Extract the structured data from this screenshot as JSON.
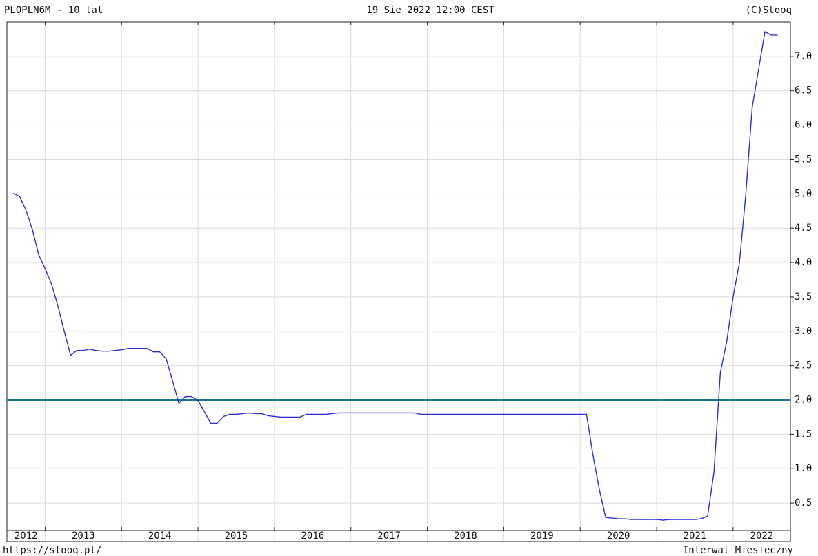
{
  "chart_data": {
    "type": "line",
    "title": "PLOPLN6M - 10 lat",
    "subtitle": "19 Sie 2022 12:00 CEST",
    "source": "(C)Stooq",
    "footer_left": "https://stooq.pl/",
    "footer_right": "Interwal Miesieczny",
    "x": [
      "2012-08",
      "2012-09",
      "2012-10",
      "2012-11",
      "2012-12",
      "2013-01",
      "2013-02",
      "2013-03",
      "2013-04",
      "2013-05",
      "2013-06",
      "2013-07",
      "2013-08",
      "2013-09",
      "2013-10",
      "2013-11",
      "2013-12",
      "2014-01",
      "2014-02",
      "2014-03",
      "2014-04",
      "2014-05",
      "2014-06",
      "2014-07",
      "2014-08",
      "2014-09",
      "2014-10",
      "2014-11",
      "2014-12",
      "2015-01",
      "2015-02",
      "2015-03",
      "2015-04",
      "2015-05",
      "2015-06",
      "2015-07",
      "2015-08",
      "2015-09",
      "2015-10",
      "2015-11",
      "2015-12",
      "2016-01",
      "2016-02",
      "2016-03",
      "2016-04",
      "2016-05",
      "2016-06",
      "2016-07",
      "2016-08",
      "2016-09",
      "2016-10",
      "2016-11",
      "2016-12",
      "2017-01",
      "2017-02",
      "2017-03",
      "2017-04",
      "2017-05",
      "2017-06",
      "2017-07",
      "2017-08",
      "2017-09",
      "2017-10",
      "2017-11",
      "2017-12",
      "2018-01",
      "2018-02",
      "2018-03",
      "2018-04",
      "2018-05",
      "2018-06",
      "2018-07",
      "2018-08",
      "2018-09",
      "2018-10",
      "2018-11",
      "2018-12",
      "2019-01",
      "2019-02",
      "2019-03",
      "2019-04",
      "2019-05",
      "2019-06",
      "2019-07",
      "2019-08",
      "2019-09",
      "2019-10",
      "2019-11",
      "2019-12",
      "2020-01",
      "2020-02",
      "2020-03",
      "2020-04",
      "2020-05",
      "2020-06",
      "2020-07",
      "2020-08",
      "2020-09",
      "2020-10",
      "2020-11",
      "2020-12",
      "2021-01",
      "2021-02",
      "2021-03",
      "2021-04",
      "2021-05",
      "2021-06",
      "2021-07",
      "2021-08",
      "2021-09",
      "2021-10",
      "2021-11",
      "2021-12",
      "2022-01",
      "2022-02",
      "2022-03",
      "2022-04",
      "2022-05",
      "2022-06",
      "2022-07",
      "2022-08"
    ],
    "series": [
      {
        "name": "PLOPLN6M",
        "color": "#2b2bd9",
        "values": [
          5.01,
          4.96,
          4.76,
          4.48,
          4.11,
          3.91,
          3.69,
          3.37,
          3.0,
          2.65,
          2.72,
          2.72,
          2.74,
          2.72,
          2.71,
          2.71,
          2.72,
          2.73,
          2.75,
          2.75,
          2.75,
          2.75,
          2.7,
          2.7,
          2.6,
          2.28,
          1.95,
          2.05,
          2.05,
          1.99,
          1.83,
          1.66,
          1.66,
          1.76,
          1.79,
          1.79,
          1.8,
          1.81,
          1.8,
          1.8,
          1.77,
          1.76,
          1.75,
          1.75,
          1.75,
          1.75,
          1.79,
          1.79,
          1.79,
          1.79,
          1.8,
          1.81,
          1.81,
          1.81,
          1.81,
          1.81,
          1.81,
          1.81,
          1.81,
          1.81,
          1.81,
          1.81,
          1.81,
          1.81,
          1.79,
          1.79,
          1.79,
          1.79,
          1.79,
          1.79,
          1.79,
          1.79,
          1.79,
          1.79,
          1.79,
          1.79,
          1.79,
          1.79,
          1.79,
          1.79,
          1.79,
          1.79,
          1.79,
          1.79,
          1.79,
          1.79,
          1.79,
          1.79,
          1.79,
          1.79,
          1.79,
          1.2,
          0.7,
          0.29,
          0.28,
          0.27,
          0.27,
          0.26,
          0.26,
          0.26,
          0.26,
          0.26,
          0.25,
          0.26,
          0.26,
          0.26,
          0.26,
          0.26,
          0.27,
          0.31,
          0.95,
          2.4,
          2.85,
          3.5,
          4.0,
          5.0,
          6.26,
          6.81,
          7.36,
          7.31,
          7.31
        ]
      }
    ],
    "reference_line": {
      "value": 2,
      "color": "#17788a"
    },
    "xlim": [
      "2012-07",
      "2022-10"
    ],
    "xticks": [
      2012,
      2013,
      2014,
      2015,
      2016,
      2017,
      2018,
      2019,
      2020,
      2021,
      2022
    ],
    "ylim": [
      0.1,
      7.5
    ],
    "yticks": [
      0.5,
      {
        "value": 1,
        "label": "1.0"
      },
      1.5,
      {
        "value": 2,
        "label": "2.0"
      },
      2.5,
      {
        "value": 3,
        "label": "3.0"
      },
      3.5,
      {
        "value": 4,
        "label": "4.0"
      },
      4.5,
      {
        "value": 5,
        "label": "5.0"
      },
      5.5,
      {
        "value": 6,
        "label": "6.0"
      },
      6.5,
      {
        "value": 7,
        "label": "7.0"
      }
    ],
    "grid": true
  }
}
